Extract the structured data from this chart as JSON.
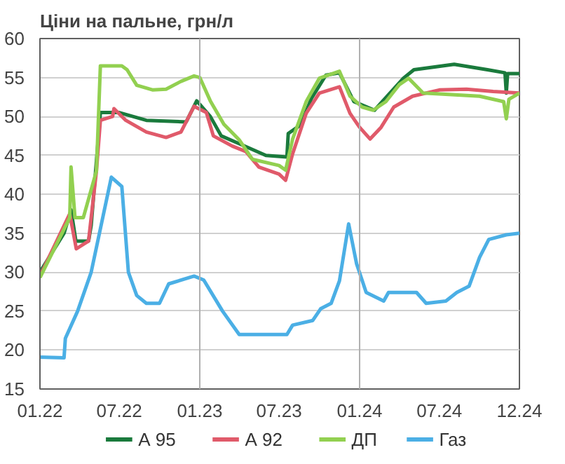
{
  "chart_data": {
    "type": "line",
    "title": "Ціни на пальне, грн/л",
    "xlim": [
      "2022-01-01",
      "2024-12-31"
    ],
    "xticks": [
      {
        "value": "2022-01-01",
        "label": "01.22"
      },
      {
        "value": "2022-07-01",
        "label": "07.22"
      },
      {
        "value": "2023-01-01",
        "label": "01.23"
      },
      {
        "value": "2023-07-01",
        "label": "07.23"
      },
      {
        "value": "2024-01-01",
        "label": "01.24"
      },
      {
        "value": "2024-07-01",
        "label": "07.24"
      },
      {
        "value": "2024-12-31",
        "label": "12.24"
      }
    ],
    "ylim": [
      15,
      60
    ],
    "yticks": [
      15,
      20,
      25,
      30,
      35,
      40,
      45,
      50,
      55,
      60
    ],
    "grid": "y",
    "legend": "bottom",
    "line_style": "solid",
    "ref_lines": [
      {
        "axis": "x",
        "value": "2023-01-01",
        "color": "#b0b0b0"
      },
      {
        "axis": "x",
        "value": "2024-01-01",
        "color": "#b0b0b0"
      }
    ],
    "series": [
      {
        "name": "А 95",
        "color": "#1a7a3c",
        "x": [
          "2022-01-01",
          "2022-02-25",
          "2022-03-13",
          "2022-03-24",
          "2022-04-22",
          "2022-04-28",
          "2022-05-19",
          "2022-07-01",
          "2022-09-01",
          "2022-12-01",
          "2022-12-25",
          "2023-01-25",
          "2023-02-19",
          "2023-04-01",
          "2023-06-01",
          "2023-07-19",
          "2023-07-22",
          "2023-08-19",
          "2023-09-13",
          "2023-10-16",
          "2023-11-16",
          "2023-12-19",
          "2024-02-04",
          "2024-03-04",
          "2024-04-10",
          "2024-05-04",
          "2024-08-04",
          "2024-10-19",
          "2024-11-28",
          "2024-12-01",
          "2024-12-04",
          "2024-12-31"
        ],
        "values": [
          30,
          35,
          38,
          34,
          34,
          36,
          50.5,
          50.5,
          49.5,
          49.3,
          52,
          50,
          47.5,
          46.5,
          45,
          44.8,
          47.8,
          48.9,
          52.3,
          55.3,
          55.6,
          51.9,
          50.8,
          52.6,
          54.9,
          56,
          56.7,
          56,
          55.6,
          53,
          55.5,
          55.5
        ]
      },
      {
        "name": "А 92",
        "color": "#e05a6a",
        "x": [
          "2022-01-01",
          "2022-03-10",
          "2022-03-25",
          "2022-04-22",
          "2022-05-10",
          "2022-05-19",
          "2022-06-16",
          "2022-06-19",
          "2022-07-16",
          "2022-09-01",
          "2022-10-16",
          "2022-11-19",
          "2022-12-19",
          "2023-01-16",
          "2023-02-01",
          "2023-03-16",
          "2023-04-16",
          "2023-05-16",
          "2023-07-01",
          "2023-07-16",
          "2023-08-01",
          "2023-09-01",
          "2023-10-01",
          "2023-11-16",
          "2023-12-10",
          "2024-01-01",
          "2024-01-25",
          "2024-02-19",
          "2024-03-19",
          "2024-05-01",
          "2024-07-01",
          "2024-09-01",
          "2024-11-01",
          "2024-12-31"
        ],
        "values": [
          29.5,
          37.5,
          33,
          34,
          43,
          49.5,
          50,
          51,
          49.5,
          48,
          47.3,
          48,
          51.3,
          50.5,
          47.5,
          46.2,
          45.5,
          43.5,
          42.6,
          41.8,
          45.2,
          50.4,
          53,
          53.8,
          50.4,
          48.6,
          47.1,
          48.6,
          51.2,
          52.6,
          53.4,
          53.5,
          53.2,
          53
        ]
      },
      {
        "name": "ДП",
        "color": "#92d050",
        "x": [
          "2022-01-01",
          "2022-03-10",
          "2022-03-13",
          "2022-03-22",
          "2022-04-10",
          "2022-05-10",
          "2022-05-19",
          "2022-07-07",
          "2022-07-19",
          "2022-08-10",
          "2022-09-16",
          "2022-10-16",
          "2022-11-19",
          "2022-12-19",
          "2023-01-01",
          "2023-01-25",
          "2023-02-25",
          "2023-04-01",
          "2023-05-01",
          "2023-07-01",
          "2023-07-16",
          "2023-08-01",
          "2023-09-01",
          "2023-10-01",
          "2023-11-16",
          "2023-12-10",
          "2024-01-07",
          "2024-02-01",
          "2024-03-01",
          "2024-04-01",
          "2024-04-22",
          "2024-05-25",
          "2024-07-01",
          "2024-10-01",
          "2024-11-25",
          "2024-12-01",
          "2024-12-07",
          "2024-12-31"
        ],
        "values": [
          29.3,
          37,
          43.5,
          37,
          37,
          43,
          56.5,
          56.5,
          56,
          54,
          53.4,
          53.5,
          54.5,
          55.2,
          55,
          52,
          49,
          47,
          44.5,
          43.7,
          43.1,
          47.1,
          51.9,
          54.9,
          55.8,
          52.6,
          51.2,
          50.8,
          51.9,
          54.1,
          54.9,
          53,
          52.9,
          52.6,
          51.9,
          49.7,
          52.2,
          53
        ]
      },
      {
        "name": "Газ",
        "color": "#4bafe5",
        "x": [
          "2022-01-01",
          "2022-02-25",
          "2022-02-28",
          "2022-03-28",
          "2022-04-28",
          "2022-06-13",
          "2022-07-07",
          "2022-07-22",
          "2022-08-10",
          "2022-09-01",
          "2022-10-01",
          "2022-10-22",
          "2022-12-19",
          "2023-01-10",
          "2023-02-22",
          "2023-04-01",
          "2023-06-01",
          "2023-07-19",
          "2023-08-01",
          "2023-09-16",
          "2023-10-04",
          "2023-10-28",
          "2023-11-16",
          "2023-12-07",
          "2023-12-25",
          "2024-01-16",
          "2024-02-25",
          "2024-03-07",
          "2024-05-10",
          "2024-06-01",
          "2024-07-16",
          "2024-08-10",
          "2024-09-07",
          "2024-10-01",
          "2024-10-22",
          "2024-12-01",
          "2024-12-31"
        ],
        "values": [
          19.1,
          19,
          21.5,
          25,
          30,
          42.2,
          41,
          30,
          27,
          26,
          26,
          28.5,
          29.5,
          29,
          25,
          22,
          22,
          22,
          23.2,
          23.8,
          25.3,
          26,
          28.9,
          36.2,
          31.1,
          27.4,
          26.3,
          27.4,
          27.4,
          26,
          26.3,
          27.4,
          28.2,
          31.9,
          34.2,
          34.8,
          35
        ]
      }
    ]
  }
}
